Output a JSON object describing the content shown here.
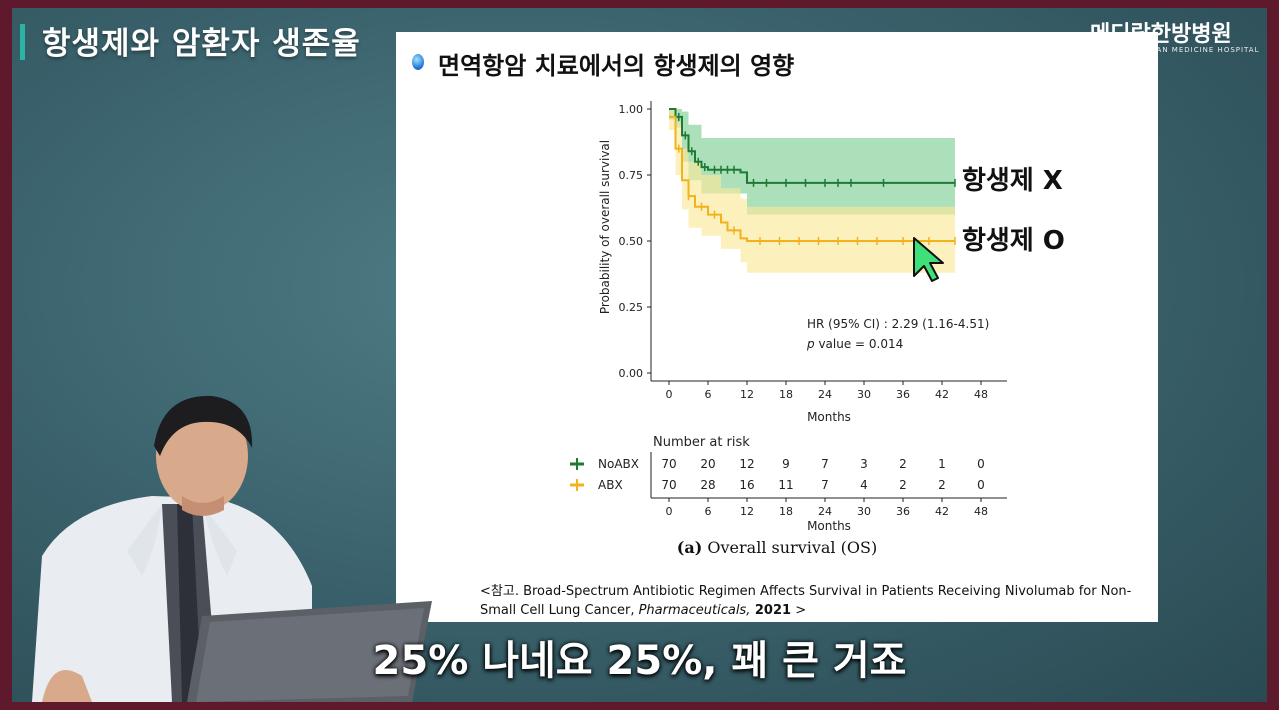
{
  "video_title": "항생제와 암환자 생존율",
  "logo": {
    "name": "메디람한방병원",
    "sub": "MEDIRAM KOREAN MEDICINE HOSPITAL"
  },
  "slide_title": "면역항암 치료에서의 항생제의 영향",
  "colors": {
    "noabx": "#1e7a34",
    "noabx_band": "#8fd6a3",
    "abx": "#f2b21b",
    "abx_band": "#fbe89a"
  },
  "chart_data": {
    "type": "line",
    "subtype": "kaplan-meier",
    "xlabel": "Months",
    "ylabel": "Probability of overall survival",
    "xlim": [
      0,
      48
    ],
    "ylim": [
      0,
      1
    ],
    "x_ticks": [
      "0",
      "6",
      "12",
      "18",
      "24",
      "30",
      "36",
      "42",
      "48"
    ],
    "y_ticks": [
      "0.00",
      "0.25",
      "0.50",
      "0.75",
      "1.00"
    ],
    "series": [
      {
        "name": "NoABX",
        "label": "항생제 X",
        "steps": [
          [
            0,
            1.0
          ],
          [
            1,
            0.97
          ],
          [
            2,
            0.9
          ],
          [
            3,
            0.84
          ],
          [
            4,
            0.8
          ],
          [
            5,
            0.78
          ],
          [
            6,
            0.77
          ],
          [
            11,
            0.76
          ],
          [
            12,
            0.72
          ],
          [
            44,
            0.72
          ]
        ],
        "ci_upper": [
          [
            0,
            1.0
          ],
          [
            1,
            1.0
          ],
          [
            2,
            0.99
          ],
          [
            3,
            0.94
          ],
          [
            5,
            0.89
          ],
          [
            12,
            0.89
          ],
          [
            44,
            0.89
          ]
        ],
        "ci_lower": [
          [
            0,
            0.96
          ],
          [
            1,
            0.93
          ],
          [
            2,
            0.8
          ],
          [
            3,
            0.73
          ],
          [
            5,
            0.68
          ],
          [
            12,
            0.6
          ],
          [
            44,
            0.6
          ]
        ]
      },
      {
        "name": "ABX",
        "label": "항생제 O",
        "steps": [
          [
            0,
            0.97
          ],
          [
            1,
            0.85
          ],
          [
            2,
            0.73
          ],
          [
            3,
            0.67
          ],
          [
            4,
            0.63
          ],
          [
            6,
            0.6
          ],
          [
            8,
            0.57
          ],
          [
            9,
            0.54
          ],
          [
            11,
            0.51
          ],
          [
            12,
            0.5
          ],
          [
            44,
            0.5
          ]
        ],
        "ci_upper": [
          [
            0,
            1.0
          ],
          [
            1,
            0.95
          ],
          [
            2,
            0.85
          ],
          [
            3,
            0.8
          ],
          [
            5,
            0.75
          ],
          [
            8,
            0.7
          ],
          [
            11,
            0.66
          ],
          [
            12,
            0.63
          ],
          [
            44,
            0.63
          ]
        ],
        "ci_lower": [
          [
            0,
            0.92
          ],
          [
            1,
            0.75
          ],
          [
            2,
            0.62
          ],
          [
            3,
            0.55
          ],
          [
            5,
            0.52
          ],
          [
            8,
            0.47
          ],
          [
            11,
            0.42
          ],
          [
            12,
            0.38
          ],
          [
            44,
            0.38
          ]
        ]
      }
    ],
    "annotation": {
      "hr": "HR (95% CI) : 2.29 (1.16-4.51)",
      "p_symbol": "p",
      "p_text": " value = 0.014"
    },
    "risk_table": {
      "title": "Number at risk",
      "rows": [
        {
          "name": "NoABX",
          "values": [
            "70",
            "20",
            "12",
            "9",
            "7",
            "3",
            "2",
            "1",
            "0"
          ]
        },
        {
          "name": "ABX",
          "values": [
            "70",
            "28",
            "16",
            "11",
            "7",
            "4",
            "2",
            "2",
            "0"
          ]
        }
      ]
    }
  },
  "caption": {
    "letter": "(a)",
    "text": " Overall survival (OS)"
  },
  "reference": {
    "prefix": "<참고. Broad-Spectrum Antibiotic Regimen Affects Survival in Patients Receiving Nivolumab for Non-Small Cell Lung Cancer, ",
    "journal": "Pharmaceuticals,",
    "year": " 2021",
    "suffix": " >"
  },
  "subtitle": "25% 나네요 25%, 꽤 큰 거죠"
}
